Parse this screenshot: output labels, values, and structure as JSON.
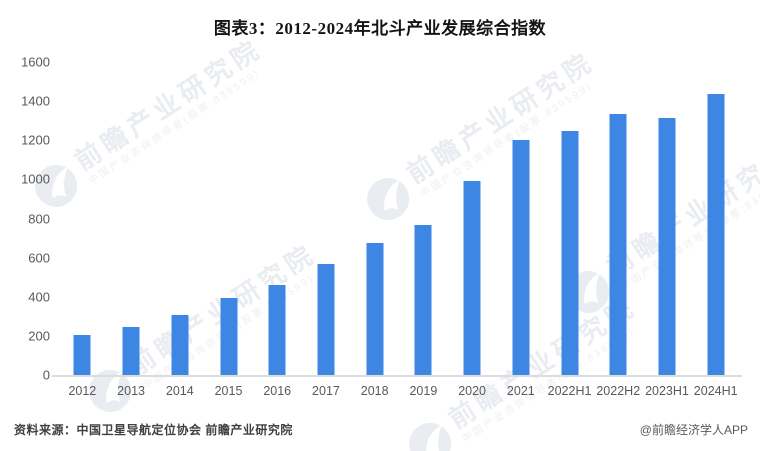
{
  "header": {
    "title": "图表3：2012-2024年北斗产业发展综合指数"
  },
  "chart_data": {
    "type": "bar",
    "title": "图表3：2012-2024年北斗产业发展综合指数",
    "categories": [
      "2012",
      "2013",
      "2014",
      "2015",
      "2016",
      "2017",
      "2018",
      "2019",
      "2020",
      "2021",
      "2022H1",
      "2022H2",
      "2023H1",
      "2024H1"
    ],
    "values": [
      207,
      248,
      306,
      394,
      460,
      566,
      677,
      765,
      990,
      1199,
      1249,
      1334,
      1315,
      1436
    ],
    "xlabel": "",
    "ylabel": "",
    "ylim": [
      0,
      1600
    ],
    "yticks": [
      0,
      200,
      400,
      600,
      800,
      1000,
      1200,
      1400,
      1600
    ],
    "grid": false,
    "legend_position": "none",
    "bar_color": "#3d86e4"
  },
  "watermark": {
    "brand": "前瞻产业研究院",
    "subtext": "中国产业咨询领导者(股票:839599)",
    "logo_icon": "qianzhan-bird-logo"
  },
  "footer": {
    "source": "资料来源：中国卫星导航定位协会 前瞻产业研究院",
    "credit": "@前瞻经济学人APP"
  },
  "colors": {
    "bar": "#3d86e4",
    "axis_text": "#595959",
    "title_text": "#141414",
    "axis_line": "#dcdcdc",
    "watermark": "#e9ecf1"
  }
}
